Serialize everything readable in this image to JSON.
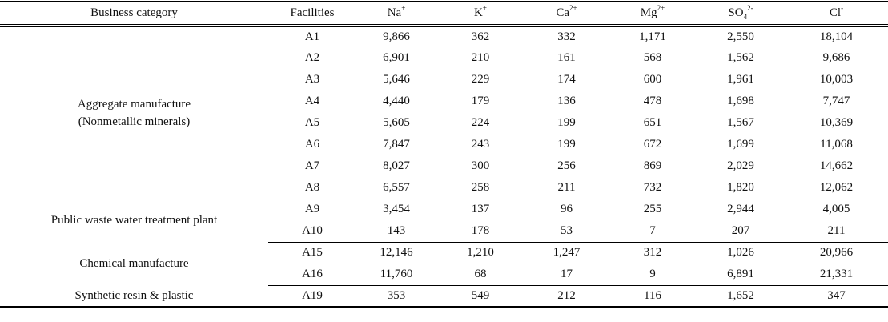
{
  "header": {
    "business_category": "Business category",
    "facilities": "Facilities",
    "na": {
      "base": "Na",
      "sup": "+"
    },
    "k": {
      "base": "K",
      "sup": "+"
    },
    "ca": {
      "base": "Ca",
      "sup": "2+"
    },
    "mg": {
      "base": "Mg",
      "sup": "2+"
    },
    "so4": {
      "base": "SO",
      "sub": "4",
      "sup": "2-"
    },
    "cl": {
      "base": "Cl",
      "sup": "-"
    }
  },
  "groups": [
    {
      "category": [
        "Aggregate manufacture",
        "(Nonmetallic minerals)"
      ],
      "rows": [
        [
          "A1",
          "9,866",
          "362",
          "332",
          "1,171",
          "2,550",
          "18,104"
        ],
        [
          "A2",
          "6,901",
          "210",
          "161",
          "568",
          "1,562",
          "9,686"
        ],
        [
          "A3",
          "5,646",
          "229",
          "174",
          "600",
          "1,961",
          "10,003"
        ],
        [
          "A4",
          "4,440",
          "179",
          "136",
          "478",
          "1,698",
          "7,747"
        ],
        [
          "A5",
          "5,605",
          "224",
          "199",
          "651",
          "1,567",
          "10,369"
        ],
        [
          "A6",
          "7,847",
          "243",
          "199",
          "672",
          "1,699",
          "11,068"
        ],
        [
          "A7",
          "8,027",
          "300",
          "256",
          "869",
          "2,029",
          "14,662"
        ],
        [
          "A8",
          "6,557",
          "258",
          "211",
          "732",
          "1,820",
          "12,062"
        ]
      ]
    },
    {
      "category": [
        "Public waste water treatment plant"
      ],
      "rows": [
        [
          "A9",
          "3,454",
          "137",
          "96",
          "255",
          "2,944",
          "4,005"
        ],
        [
          "A10",
          "143",
          "178",
          "53",
          "7",
          "207",
          "211"
        ]
      ]
    },
    {
      "category": [
        "Chemical manufacture"
      ],
      "rows": [
        [
          "A15",
          "12,146",
          "1,210",
          "1,247",
          "312",
          "1,026",
          "20,966"
        ],
        [
          "A16",
          "11,760",
          "68",
          "17",
          "9",
          "6,891",
          "21,331"
        ]
      ]
    },
    {
      "category": [
        "Synthetic resin & plastic"
      ],
      "rows": [
        [
          "A19",
          "353",
          "549",
          "212",
          "116",
          "1,652",
          "347"
        ]
      ]
    }
  ]
}
